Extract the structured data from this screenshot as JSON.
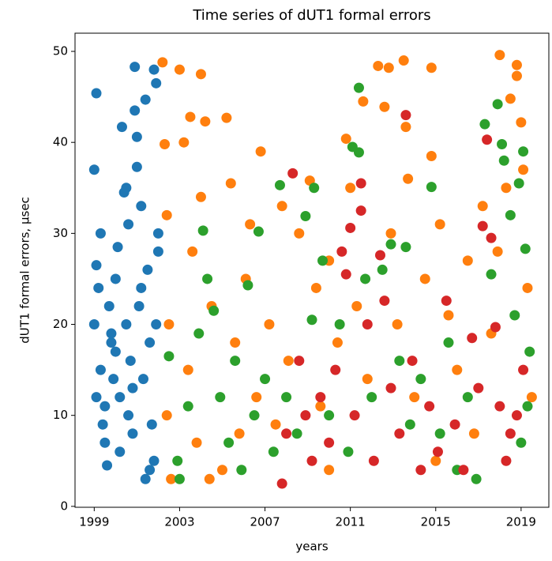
{
  "chart_data": {
    "type": "scatter",
    "title": "Time series of dUT1 formal errors",
    "xlabel": "years",
    "ylabel": "dUT1 formal errors, µsec",
    "xlim": [
      1998.1,
      2020.3
    ],
    "ylim": [
      -0.1,
      52
    ],
    "xticks": [
      1999,
      2003,
      2007,
      2011,
      2015,
      2019
    ],
    "yticks": [
      0,
      10,
      20,
      30,
      40,
      50
    ],
    "series": [
      {
        "color": "#1f77b4",
        "x": [
          1999.1,
          1999.0,
          1999.1,
          1999.2,
          1999.0,
          1999.3,
          1999.1,
          1999.4,
          1999.6,
          1999.5,
          1999.7,
          1999.8,
          1999.9,
          2000.0,
          2000.1,
          2000.2,
          2000.3,
          2000.4,
          2000.5,
          2000.6,
          2000.5,
          2000.7,
          2000.8,
          2000.9,
          2000.9,
          2001.0,
          2001.0,
          2001.1,
          2001.2,
          2001.3,
          2001.4,
          2001.5,
          2001.6,
          2001.7,
          2001.8,
          2001.9,
          2001.8,
          2001.4,
          2000.2,
          2002.0,
          2002.0,
          2001.9,
          1999.5,
          2000.0,
          2000.8,
          1999.8,
          2001.2,
          1999.3,
          2000.6,
          2001.6
        ],
        "values": [
          45.4,
          37,
          26.5,
          24,
          20,
          15,
          12,
          9,
          4.5,
          7,
          22,
          18,
          14,
          25,
          28.5,
          12,
          41.7,
          34.5,
          35,
          31,
          20,
          16,
          8,
          48.3,
          43.5,
          37.3,
          40.6,
          22,
          33,
          14,
          44.7,
          26,
          18,
          9,
          48,
          46.5,
          5,
          3,
          6,
          28,
          30,
          20,
          11,
          17,
          13,
          19,
          24,
          30,
          10,
          4
        ]
      },
      {
        "color": "#ff7f0e",
        "x": [
          2002.2,
          2002.3,
          2002.4,
          2002.5,
          2002.4,
          2002.6,
          2003.0,
          2003.2,
          2003.5,
          2003.6,
          2003.4,
          2003.8,
          2004.0,
          2004.2,
          2004.0,
          2004.5,
          2004.4,
          2005.2,
          2005.4,
          2005.6,
          2005.8,
          2006.1,
          2006.3,
          2006.8,
          2006.6,
          2007.2,
          2007.5,
          2007.8,
          2008.1,
          2008.6,
          2009.1,
          2009.4,
          2009.6,
          2010.0,
          2010.4,
          2010.8,
          2011.0,
          2011.3,
          2011.6,
          2011.8,
          2012.3,
          2012.6,
          2012.8,
          2012.9,
          2013.2,
          2013.5,
          2013.6,
          2013.7,
          2014.0,
          2014.5,
          2014.8,
          2014.8,
          2015.2,
          2015.6,
          2016.0,
          2016.5,
          2016.8,
          2017.2,
          2017.6,
          2018.0,
          2018.5,
          2018.8,
          2018.8,
          2019.0,
          2019.1,
          2019.3,
          2019.5,
          2018.3,
          2017.9,
          2015.0,
          2010.0,
          2005.0
        ],
        "values": [
          48.8,
          39.8,
          32,
          20,
          10,
          3,
          48,
          40,
          42.8,
          28,
          15,
          7,
          47.5,
          42.3,
          34,
          22,
          3,
          42.7,
          35.5,
          18,
          8,
          25,
          31,
          39,
          12,
          20,
          9,
          33,
          16,
          30,
          35.8,
          24,
          11,
          27,
          18,
          40.4,
          35,
          22,
          44.5,
          14,
          48.4,
          43.9,
          48.2,
          30,
          20,
          49,
          41.7,
          36,
          12,
          25,
          48.2,
          38.5,
          31,
          21,
          15,
          27,
          8,
          33,
          19,
          49.6,
          44.8,
          48.5,
          47.3,
          42.2,
          37,
          24,
          12,
          35,
          28,
          5,
          4,
          4
        ]
      },
      {
        "color": "#2ca02c",
        "x": [
          2002.5,
          2002.9,
          2003.0,
          2003.4,
          2003.9,
          2004.1,
          2004.3,
          2004.6,
          2004.9,
          2005.3,
          2005.6,
          2005.9,
          2006.2,
          2006.5,
          2006.7,
          2007.0,
          2007.4,
          2007.7,
          2008.0,
          2008.5,
          2008.9,
          2009.2,
          2009.3,
          2009.7,
          2010.0,
          2010.5,
          2010.9,
          2011.1,
          2011.4,
          2011.4,
          2011.7,
          2012.0,
          2012.5,
          2012.9,
          2013.3,
          2013.6,
          2013.8,
          2014.3,
          2014.8,
          2015.2,
          2015.6,
          2016.0,
          2016.5,
          2016.9,
          2017.3,
          2017.6,
          2017.9,
          2018.1,
          2018.2,
          2018.5,
          2018.7,
          2018.9,
          2019.1,
          2019.2,
          2019.4,
          2019.0,
          2019.3
        ],
        "values": [
          16.5,
          5,
          3,
          11,
          19,
          30.3,
          25,
          21.5,
          12,
          7,
          16,
          4,
          24.3,
          10,
          30.2,
          14,
          6,
          35.3,
          12,
          8,
          31.9,
          20.5,
          35,
          27,
          10,
          20,
          6,
          39.5,
          46,
          38.9,
          25,
          12,
          26,
          28.8,
          16,
          28.5,
          9,
          14,
          35.1,
          8,
          18,
          4,
          12,
          3,
          42,
          25.5,
          44.2,
          39.8,
          38,
          32,
          21,
          35.5,
          39,
          28.3,
          17,
          7,
          11
        ]
      },
      {
        "color": "#d62728",
        "x": [
          2007.8,
          2008.0,
          2008.3,
          2008.6,
          2008.9,
          2009.2,
          2009.6,
          2010.0,
          2010.3,
          2010.6,
          2010.8,
          2011.0,
          2011.2,
          2011.5,
          2011.5,
          2011.8,
          2012.1,
          2012.4,
          2012.6,
          2012.9,
          2013.3,
          2013.6,
          2013.9,
          2014.3,
          2014.7,
          2015.1,
          2015.5,
          2015.9,
          2016.3,
          2016.7,
          2017.0,
          2017.2,
          2017.4,
          2017.6,
          2017.8,
          2018.0,
          2018.3,
          2018.5,
          2019.1,
          2018.8
        ],
        "values": [
          2.5,
          8,
          36.6,
          16,
          10,
          5,
          12,
          7,
          15,
          28,
          25.5,
          30.6,
          10,
          35.5,
          32.5,
          20,
          5,
          27.6,
          22.6,
          13,
          8,
          43,
          16,
          4,
          11,
          6,
          22.6,
          9,
          4,
          18.5,
          13,
          30.8,
          40.3,
          29.5,
          19.7,
          11,
          5,
          8,
          15,
          10
        ]
      }
    ]
  }
}
